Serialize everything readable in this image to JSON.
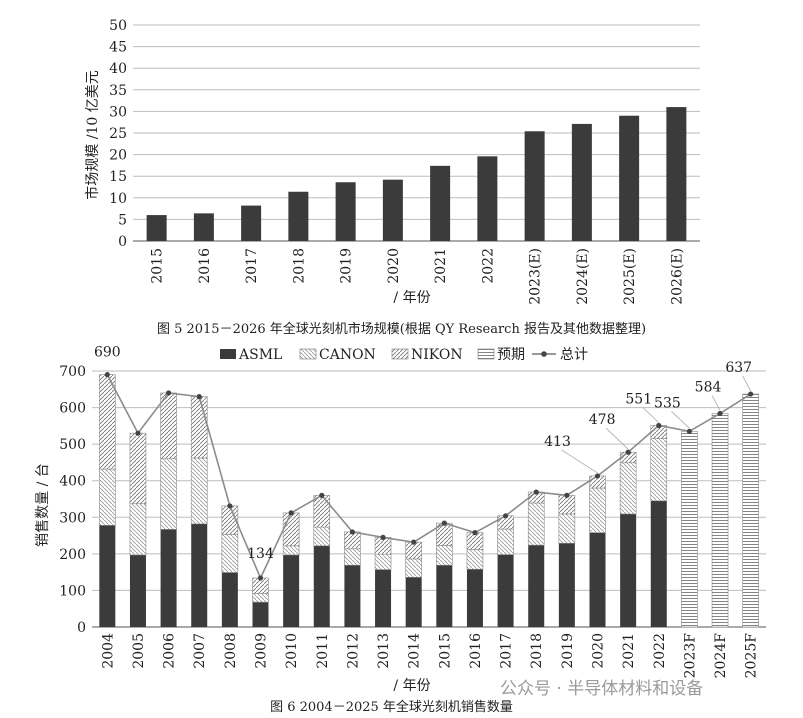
{
  "chart_data": [
    {
      "type": "bar",
      "title": "图 5  2015－2026 年全球光刻机市场规模(根据 QY Research 报告及其他数据整理)",
      "ylabel": "市场规模 /10 亿美元",
      "xlabel": "/ 年份",
      "ylim": [
        0,
        50
      ],
      "yticks": [
        0,
        5,
        10,
        15,
        20,
        25,
        30,
        35,
        40,
        45,
        50
      ],
      "grid": true,
      "categories": [
        "2015",
        "2016",
        "2017",
        "2018",
        "2019",
        "2020",
        "2021",
        "2022",
        "2023(E)",
        "2024(E)",
        "2025(E)",
        "2026(E)"
      ],
      "values": [
        6,
        6.4,
        8.2,
        11.4,
        13.6,
        14.2,
        17.4,
        19.6,
        25.4,
        27.1,
        29,
        31
      ],
      "color": "#3b3b3b"
    },
    {
      "type": "bar",
      "stacked": true,
      "title": "图 6  2004－2025 年全球光刻机销售数量",
      "ylabel": "销售数量 / 台",
      "xlabel": "/ 年份",
      "ylim": [
        0,
        700
      ],
      "yticks": [
        0,
        100,
        200,
        300,
        400,
        500,
        600,
        700
      ],
      "grid": true,
      "legend_position": "top",
      "categories": [
        "2004",
        "2005",
        "2006",
        "2007",
        "2008",
        "2009",
        "2010",
        "2011",
        "2012",
        "2013",
        "2014",
        "2015",
        "2016",
        "2017",
        "2018",
        "2019",
        "2020",
        "2021",
        "2022",
        "2023F",
        "2024F",
        "2025F"
      ],
      "series": [
        {
          "name": "ASML",
          "values": [
            278,
            197,
            267,
            282,
            149,
            68,
            197,
            222,
            169,
            157,
            136,
            169,
            158,
            198,
            224,
            229,
            258,
            309,
            345,
            0,
            0,
            0
          ]
        },
        {
          "name": "CANON",
          "values": [
            154,
            140,
            193,
            180,
            104,
            24,
            25,
            51,
            45,
            42,
            50,
            54,
            54,
            70,
            115,
            80,
            122,
            140,
            170,
            0,
            0,
            0
          ]
        },
        {
          "name": "NIKON",
          "values": [
            258,
            193,
            180,
            168,
            78,
            42,
            90,
            87,
            46,
            46,
            46,
            61,
            46,
            36,
            30,
            51,
            33,
            29,
            36,
            0,
            0,
            0
          ]
        },
        {
          "name": "预期",
          "values": [
            0,
            0,
            0,
            0,
            0,
            0,
            0,
            0,
            0,
            0,
            0,
            0,
            0,
            0,
            0,
            0,
            0,
            0,
            0,
            535,
            584,
            637
          ]
        }
      ],
      "total": {
        "name": "总计",
        "values": [
          690,
          530,
          640,
          630,
          331,
          134,
          312,
          360,
          260,
          245,
          232,
          284,
          258,
          304,
          369,
          360,
          413,
          478,
          551,
          535,
          584,
          637
        ]
      },
      "data_labels": [
        {
          "index": 0,
          "text": "690"
        },
        {
          "index": 5,
          "text": "134"
        },
        {
          "index": 16,
          "text": "413"
        },
        {
          "index": 17,
          "text": "478"
        },
        {
          "index": 18,
          "text": "551"
        },
        {
          "index": 19,
          "text": "535"
        },
        {
          "index": 20,
          "text": "584"
        },
        {
          "index": 21,
          "text": "637"
        }
      ]
    }
  ],
  "watermark": "公众号 · 半导体材料和设备"
}
